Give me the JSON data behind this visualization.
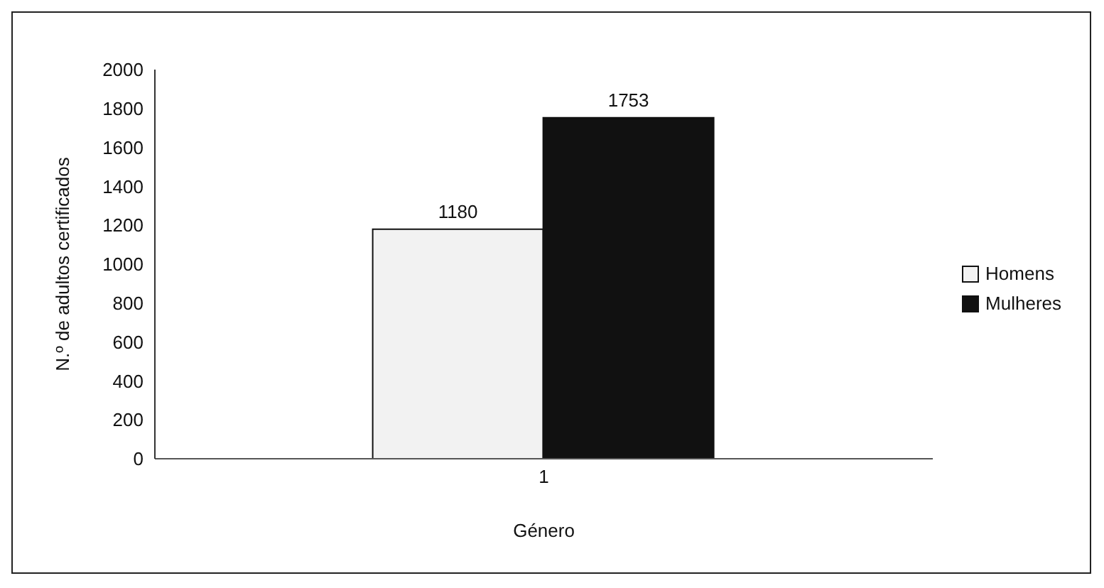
{
  "chart_data": {
    "type": "bar",
    "xlabel": "Género",
    "ylabel": "N.º de adultos certificados",
    "categories": [
      "1"
    ],
    "series": [
      {
        "name": "Homens",
        "color": "#f2f2f2",
        "values": [
          1180
        ]
      },
      {
        "name": "Mulheres",
        "color": "#111111",
        "values": [
          1753
        ]
      }
    ],
    "ylim": [
      0,
      2000
    ],
    "yticks": [
      0,
      200,
      400,
      600,
      800,
      1000,
      1200,
      1400,
      1600,
      1800,
      2000
    ],
    "data_labels": true,
    "legend": "right",
    "grid": false
  }
}
